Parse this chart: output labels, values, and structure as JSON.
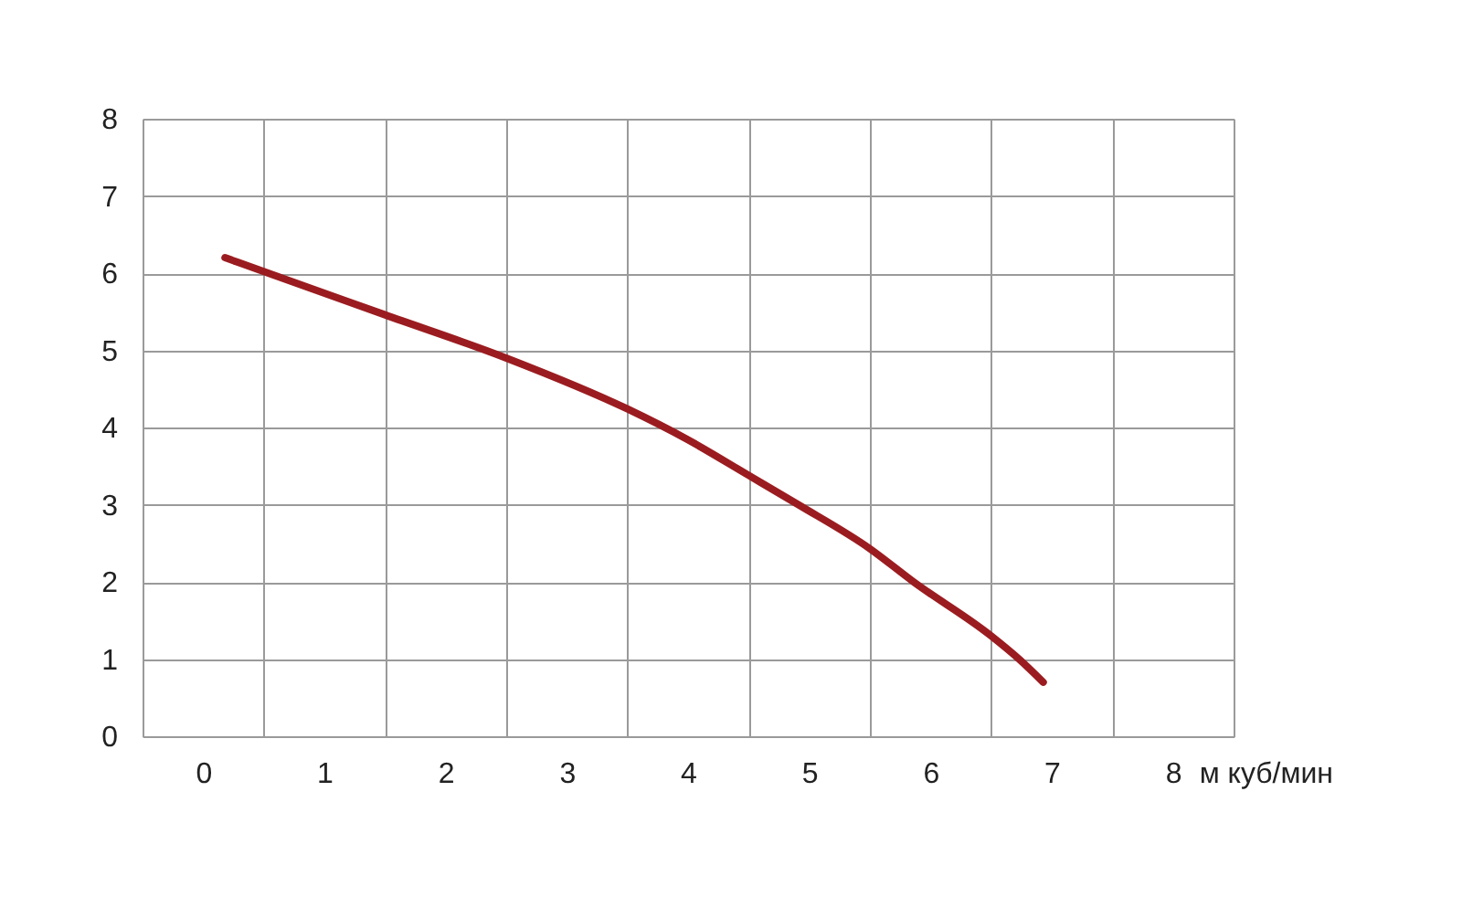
{
  "chart_data": {
    "type": "line",
    "xlabel": "м куб/мин",
    "x": [
      0.18,
      0.5,
      1.5,
      2.5,
      3.5,
      4.0,
      4.5,
      4.91,
      5.5,
      5.86,
      6.5,
      6.73,
      6.93
    ],
    "series": [
      {
        "color": "#9b1c20",
        "values": [
          6.2,
          6.02,
          5.46,
          4.9,
          4.24,
          3.84,
          3.38,
          3.0,
          2.43,
          2.0,
          1.3,
          1.0,
          0.7
        ]
      }
    ],
    "xlim": [
      -0.5,
      8.5
    ],
    "xticks": [
      {
        "value": -0.5,
        "label": null
      },
      0,
      {
        "value": 0.5,
        "label": null
      },
      1,
      {
        "value": 1.5,
        "label": null
      },
      2,
      {
        "value": 2.5,
        "label": null
      },
      3,
      {
        "value": 3.5,
        "label": null
      },
      4,
      {
        "value": 4.5,
        "label": null
      },
      5,
      {
        "value": 5.5,
        "label": null
      },
      6,
      {
        "value": 6.5,
        "label": null
      },
      7,
      {
        "value": 7.5,
        "label": null
      },
      8,
      {
        "value": 8.5,
        "label": null
      }
    ],
    "ylim": [
      0,
      8
    ],
    "yticks": [
      0,
      1,
      2,
      3,
      4,
      5,
      6,
      7,
      8
    ],
    "grid": true,
    "line_style": "solid"
  }
}
